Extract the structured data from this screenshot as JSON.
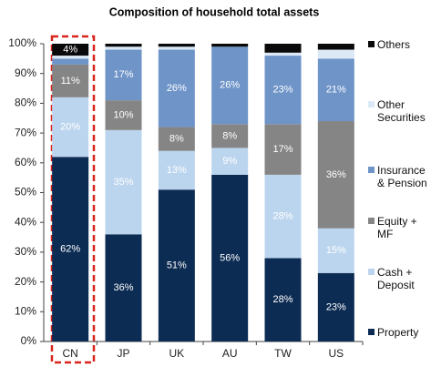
{
  "chart_data": {
    "type": "stacked_bar",
    "title": "Composition of household total assets",
    "categories": [
      "CN",
      "JP",
      "UK",
      "AU",
      "TW",
      "US"
    ],
    "series": [
      {
        "name": "Property",
        "color": "#0d2c54",
        "values": [
          62,
          36,
          51,
          56,
          28,
          23
        ],
        "value_labels": [
          "62%",
          "36%",
          "51%",
          "56%",
          "28%",
          "23%"
        ]
      },
      {
        "name": "Cash + Deposit",
        "color": "#bcd5ee",
        "values": [
          20,
          35,
          13,
          9,
          28,
          15
        ],
        "value_labels": [
          "20%",
          "35%",
          "13%",
          "9%",
          "28%",
          "15%"
        ]
      },
      {
        "name": "Equity + MF",
        "color": "#858585",
        "values": [
          11,
          10,
          8,
          8,
          17,
          36
        ],
        "value_labels": [
          "11%",
          "10%",
          "8%",
          "8%",
          "17%",
          "36%"
        ]
      },
      {
        "name": "Insurance & Pension",
        "color": "#6f94c8",
        "values": [
          2,
          17,
          26,
          26,
          23,
          21
        ],
        "value_labels": [
          null,
          "17%",
          "26%",
          "26%",
          "23%",
          "21%"
        ]
      },
      {
        "name": "Other Securities",
        "color": "#dbe9f7",
        "values": [
          1,
          1,
          1,
          0,
          1,
          3
        ],
        "value_labels": [
          null,
          null,
          null,
          null,
          null,
          null
        ]
      },
      {
        "name": "Others",
        "color": "#0a0a0a",
        "values": [
          4,
          1,
          1,
          1,
          3,
          2
        ],
        "value_labels": [
          "4%",
          null,
          null,
          null,
          null,
          null
        ]
      }
    ],
    "ylim": [
      0,
      100
    ],
    "yticks": [
      {
        "value": 0,
        "label": "0%"
      },
      {
        "value": 10,
        "label": "10%"
      },
      {
        "value": 20,
        "label": "20%"
      },
      {
        "value": 30,
        "label": "30%"
      },
      {
        "value": 40,
        "label": "40%"
      },
      {
        "value": 50,
        "label": "50%"
      },
      {
        "value": 60,
        "label": "60%"
      },
      {
        "value": 70,
        "label": "70%"
      },
      {
        "value": 80,
        "label": "80%"
      },
      {
        "value": 90,
        "label": "90%"
      },
      {
        "value": 100,
        "label": "100%"
      }
    ],
    "legend": "right"
  }
}
